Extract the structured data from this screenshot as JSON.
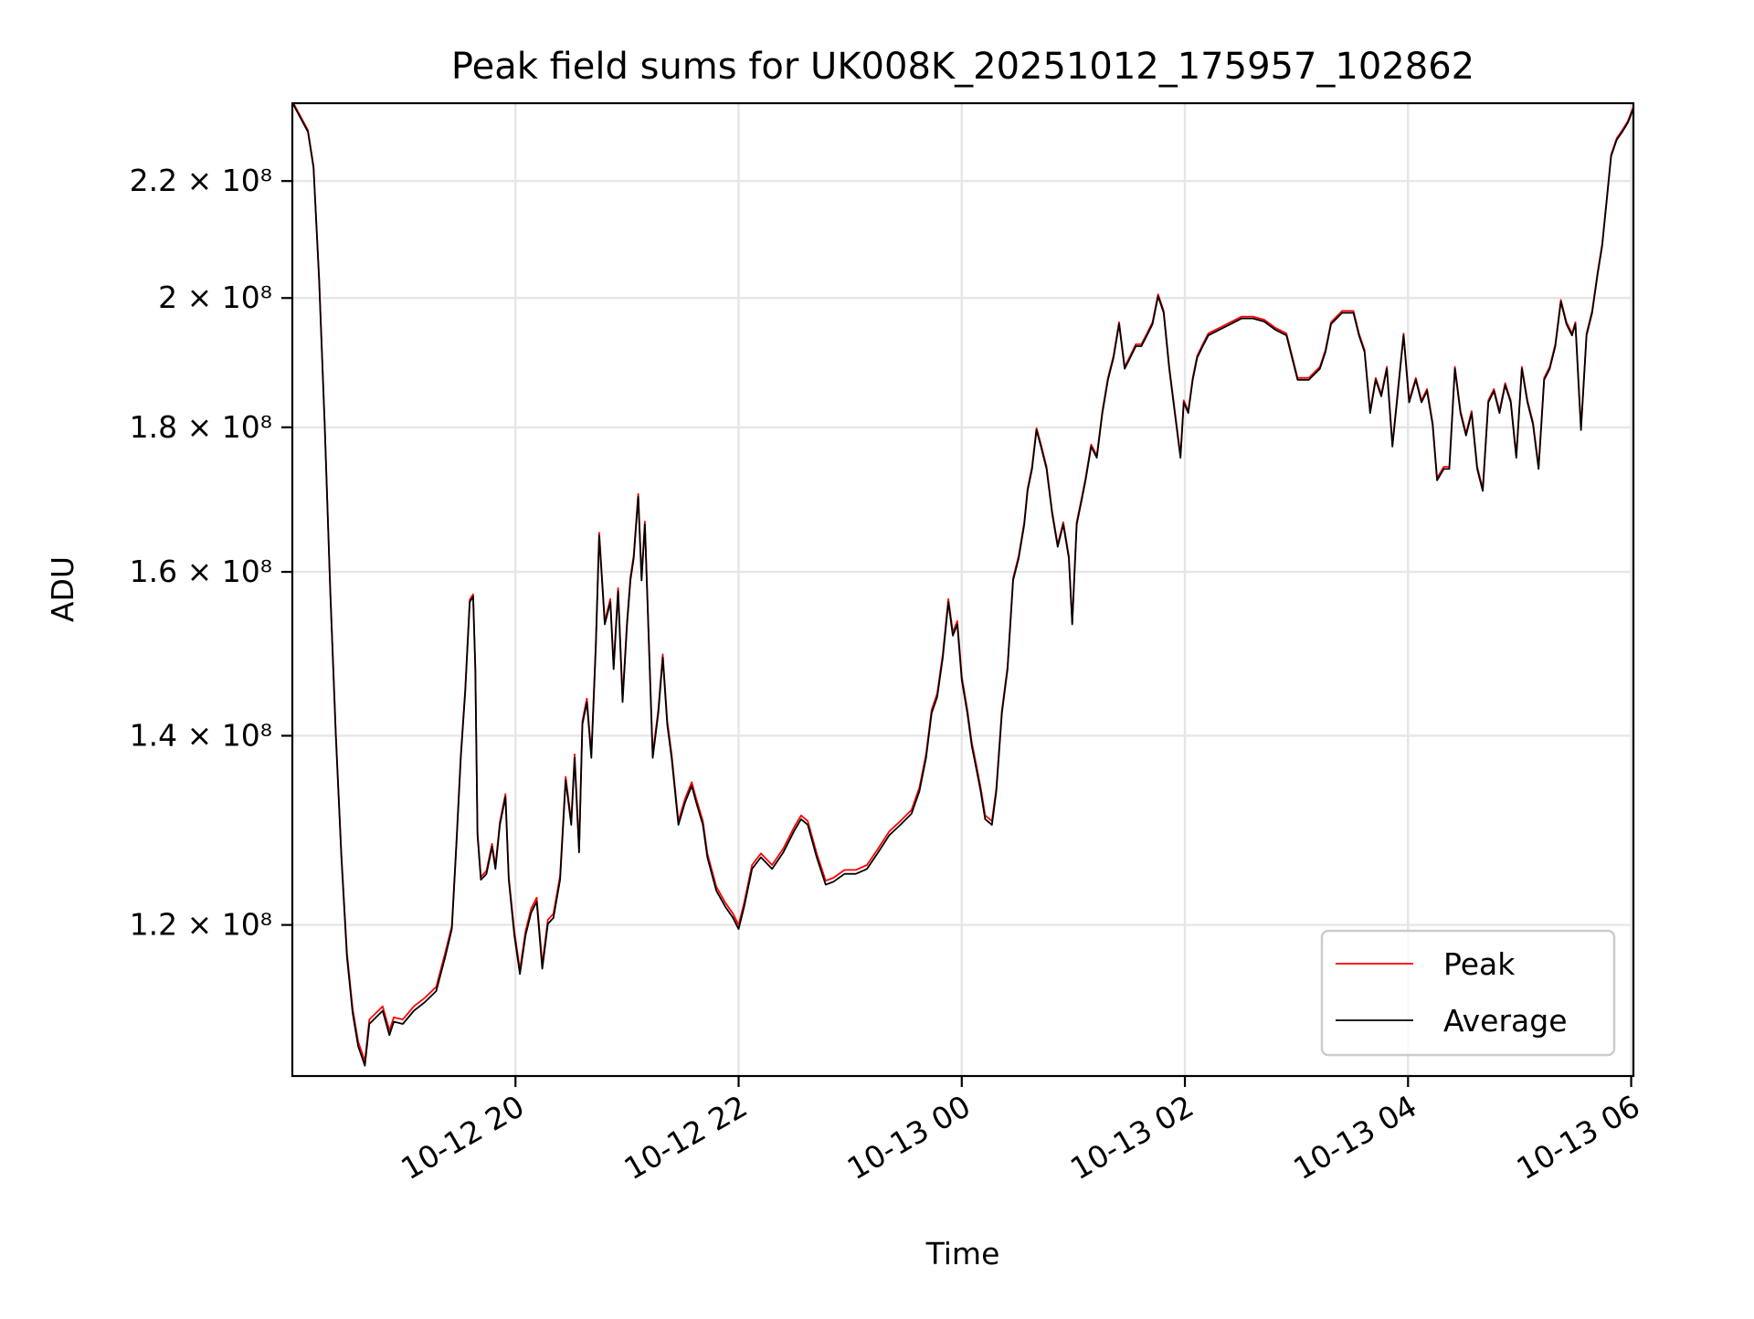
{
  "chart_data": {
    "type": "line",
    "title": "Peak field sums for UK008K_20251012_175957_102862",
    "xlabel": "Time",
    "ylabel": "ADU",
    "x_units": "hours since 2025-10-12 00:00",
    "xlim": [
      18.0,
      30.02
    ],
    "ylim": [
      106100000.0,
      234400000.0
    ],
    "yscale": "log",
    "grid": true,
    "legend_position": "lower-right",
    "x_ticks": [
      {
        "value": 20,
        "label": "10-12 20"
      },
      {
        "value": 22,
        "label": "10-12 22"
      },
      {
        "value": 24,
        "label": "10-13 00"
      },
      {
        "value": 26,
        "label": "10-13 02"
      },
      {
        "value": 28,
        "label": "10-13 04"
      },
      {
        "value": 30,
        "label": "10-13 06"
      }
    ],
    "y_ticks": [
      {
        "value": 120000000.0,
        "label": "1.2 × 10⁸"
      },
      {
        "value": 140000000.0,
        "label": "1.4 × 10⁸"
      },
      {
        "value": 160000000.0,
        "label": "1.6 × 10⁸"
      },
      {
        "value": 180000000.0,
        "label": "1.8 × 10⁸"
      },
      {
        "value": 200000000.0,
        "label": "2 × 10⁸"
      },
      {
        "value": 220000000.0,
        "label": "2.2 × 10⁸"
      }
    ],
    "value_scale": 100000000.0,
    "x": [
      18.0,
      18.14,
      18.19,
      18.24,
      18.29,
      18.34,
      18.39,
      18.44,
      18.49,
      18.54,
      18.59,
      18.65,
      18.69,
      18.74,
      18.81,
      18.87,
      18.91,
      18.99,
      19.09,
      19.19,
      19.29,
      19.37,
      19.43,
      19.47,
      19.51,
      19.55,
      19.59,
      19.62,
      19.64,
      19.66,
      19.69,
      19.74,
      19.79,
      19.82,
      19.86,
      19.91,
      19.94,
      19.99,
      20.04,
      20.09,
      20.14,
      20.19,
      20.24,
      20.29,
      20.34,
      20.4,
      20.45,
      20.5,
      20.53,
      20.57,
      20.6,
      20.64,
      20.68,
      20.72,
      20.75,
      20.8,
      20.85,
      20.88,
      20.92,
      20.96,
      21.0,
      21.03,
      21.06,
      21.1,
      21.13,
      21.16,
      21.2,
      21.23,
      21.28,
      21.32,
      21.36,
      21.4,
      21.46,
      21.52,
      21.58,
      21.62,
      21.68,
      21.72,
      21.8,
      21.88,
      21.95,
      22.0,
      22.05,
      22.12,
      22.2,
      22.3,
      22.4,
      22.5,
      22.56,
      22.62,
      22.7,
      22.78,
      22.85,
      22.95,
      23.05,
      23.15,
      23.25,
      23.35,
      23.45,
      23.55,
      23.62,
      23.68,
      23.73,
      23.78,
      23.83,
      23.88,
      23.92,
      23.96,
      24.0,
      24.05,
      24.09,
      24.13,
      24.17,
      24.21,
      24.27,
      24.31,
      24.36,
      24.41,
      24.46,
      24.51,
      24.56,
      24.59,
      24.63,
      24.67,
      24.71,
      24.76,
      24.81,
      24.86,
      24.91,
      24.96,
      24.99,
      25.03,
      25.07,
      25.11,
      25.16,
      25.21,
      25.26,
      25.31,
      25.36,
      25.41,
      25.46,
      25.51,
      25.56,
      25.61,
      25.66,
      25.71,
      25.76,
      25.81,
      25.86,
      25.91,
      25.96,
      25.99,
      26.03,
      26.07,
      26.11,
      26.16,
      26.21,
      26.31,
      26.41,
      26.51,
      26.61,
      26.71,
      26.81,
      26.91,
      26.96,
      27.01,
      27.11,
      27.21,
      27.26,
      27.31,
      27.41,
      27.51,
      27.56,
      27.61,
      27.66,
      27.71,
      27.76,
      27.81,
      27.86,
      27.91,
      27.96,
      28.01,
      28.07,
      28.12,
      28.17,
      28.22,
      28.26,
      28.32,
      28.37,
      28.42,
      28.47,
      28.52,
      28.57,
      28.62,
      28.67,
      28.72,
      28.77,
      28.82,
      28.87,
      28.92,
      28.97,
      29.02,
      29.07,
      29.12,
      29.17,
      29.22,
      29.27,
      29.32,
      29.37,
      29.42,
      29.47,
      29.5,
      29.55,
      29.6,
      29.65,
      29.7,
      29.74,
      29.78,
      29.82,
      29.87,
      29.92,
      29.97,
      30.02
    ],
    "series": [
      {
        "name": "Peak",
        "color": "#ff0000",
        "values": [
          2.348,
          2.293,
          2.227,
          2.033,
          1.807,
          1.578,
          1.403,
          1.271,
          1.173,
          1.121,
          1.091,
          1.074,
          1.111,
          1.116,
          1.123,
          1.101,
          1.113,
          1.111,
          1.123,
          1.131,
          1.141,
          1.173,
          1.199,
          1.282,
          1.378,
          1.455,
          1.564,
          1.571,
          1.481,
          1.294,
          1.248,
          1.254,
          1.282,
          1.259,
          1.305,
          1.335,
          1.248,
          1.194,
          1.157,
          1.194,
          1.216,
          1.227,
          1.162,
          1.205,
          1.211,
          1.249,
          1.354,
          1.306,
          1.379,
          1.277,
          1.417,
          1.443,
          1.379,
          1.509,
          1.652,
          1.537,
          1.565,
          1.482,
          1.579,
          1.443,
          1.537,
          1.593,
          1.622,
          1.705,
          1.593,
          1.667,
          1.496,
          1.379,
          1.43,
          1.496,
          1.417,
          1.379,
          1.306,
          1.33,
          1.348,
          1.33,
          1.306,
          1.272,
          1.238,
          1.222,
          1.211,
          1.2,
          1.222,
          1.26,
          1.272,
          1.26,
          1.277,
          1.3,
          1.312,
          1.306,
          1.272,
          1.244,
          1.247,
          1.255,
          1.255,
          1.26,
          1.277,
          1.295,
          1.306,
          1.318,
          1.342,
          1.379,
          1.43,
          1.449,
          1.496,
          1.565,
          1.523,
          1.537,
          1.469,
          1.43,
          1.392,
          1.367,
          1.342,
          1.312,
          1.306,
          1.341,
          1.429,
          1.481,
          1.592,
          1.621,
          1.666,
          1.712,
          1.743,
          1.799,
          1.775,
          1.743,
          1.681,
          1.636,
          1.666,
          1.621,
          1.536,
          1.666,
          1.696,
          1.727,
          1.775,
          1.759,
          1.824,
          1.874,
          1.908,
          1.961,
          1.891,
          1.908,
          1.926,
          1.926,
          1.943,
          1.961,
          2.006,
          1.979,
          1.891,
          1.824,
          1.759,
          1.84,
          1.824,
          1.874,
          1.908,
          1.926,
          1.943,
          1.952,
          1.961,
          1.97,
          1.97,
          1.965,
          1.952,
          1.943,
          1.908,
          1.874,
          1.874,
          1.891,
          1.917,
          1.961,
          1.979,
          1.979,
          1.943,
          1.917,
          1.824,
          1.874,
          1.849,
          1.891,
          1.775,
          1.857,
          1.943,
          1.84,
          1.874,
          1.84,
          1.857,
          1.807,
          1.727,
          1.743,
          1.743,
          1.891,
          1.824,
          1.791,
          1.824,
          1.743,
          1.712,
          1.84,
          1.857,
          1.824,
          1.866,
          1.84,
          1.759,
          1.891,
          1.84,
          1.807,
          1.743,
          1.874,
          1.891,
          1.926,
          1.997,
          1.961,
          1.943,
          1.961,
          1.799,
          1.943,
          1.979,
          2.043,
          2.09,
          2.167,
          2.248,
          2.278,
          2.293,
          2.31,
          2.337
        ]
      },
      {
        "name": "Average",
        "color": "#000000",
        "values": [
          2.345,
          2.29,
          2.224,
          2.03,
          1.804,
          1.575,
          1.4,
          1.268,
          1.169,
          1.117,
          1.087,
          1.07,
          1.107,
          1.112,
          1.119,
          1.097,
          1.109,
          1.107,
          1.119,
          1.127,
          1.137,
          1.169,
          1.196,
          1.279,
          1.375,
          1.452,
          1.561,
          1.568,
          1.478,
          1.291,
          1.245,
          1.251,
          1.279,
          1.256,
          1.302,
          1.332,
          1.245,
          1.19,
          1.153,
          1.19,
          1.212,
          1.223,
          1.158,
          1.201,
          1.207,
          1.245,
          1.35,
          1.302,
          1.375,
          1.273,
          1.413,
          1.439,
          1.375,
          1.505,
          1.648,
          1.533,
          1.561,
          1.478,
          1.575,
          1.439,
          1.533,
          1.589,
          1.618,
          1.701,
          1.589,
          1.663,
          1.492,
          1.375,
          1.426,
          1.492,
          1.413,
          1.375,
          1.302,
          1.326,
          1.344,
          1.326,
          1.302,
          1.268,
          1.234,
          1.218,
          1.207,
          1.196,
          1.218,
          1.256,
          1.268,
          1.256,
          1.273,
          1.296,
          1.308,
          1.302,
          1.268,
          1.24,
          1.243,
          1.251,
          1.251,
          1.256,
          1.273,
          1.291,
          1.302,
          1.314,
          1.338,
          1.375,
          1.426,
          1.445,
          1.492,
          1.561,
          1.519,
          1.533,
          1.465,
          1.426,
          1.388,
          1.363,
          1.338,
          1.308,
          1.302,
          1.338,
          1.426,
          1.478,
          1.589,
          1.618,
          1.663,
          1.709,
          1.74,
          1.796,
          1.772,
          1.74,
          1.678,
          1.633,
          1.663,
          1.618,
          1.533,
          1.663,
          1.693,
          1.724,
          1.772,
          1.756,
          1.821,
          1.871,
          1.905,
          1.958,
          1.888,
          1.905,
          1.923,
          1.923,
          1.94,
          1.958,
          2.003,
          1.976,
          1.888,
          1.821,
          1.756,
          1.837,
          1.821,
          1.871,
          1.905,
          1.923,
          1.94,
          1.949,
          1.958,
          1.967,
          1.967,
          1.962,
          1.949,
          1.94,
          1.905,
          1.871,
          1.871,
          1.888,
          1.914,
          1.958,
          1.976,
          1.976,
          1.94,
          1.914,
          1.821,
          1.871,
          1.846,
          1.888,
          1.772,
          1.854,
          1.94,
          1.837,
          1.871,
          1.837,
          1.854,
          1.804,
          1.724,
          1.74,
          1.74,
          1.888,
          1.821,
          1.788,
          1.821,
          1.74,
          1.709,
          1.837,
          1.854,
          1.821,
          1.863,
          1.837,
          1.756,
          1.888,
          1.837,
          1.804,
          1.74,
          1.871,
          1.888,
          1.923,
          1.994,
          1.958,
          1.94,
          1.958,
          1.796,
          1.94,
          1.976,
          2.04,
          2.087,
          2.164,
          2.245,
          2.275,
          2.29,
          2.307,
          2.334
        ]
      }
    ]
  }
}
